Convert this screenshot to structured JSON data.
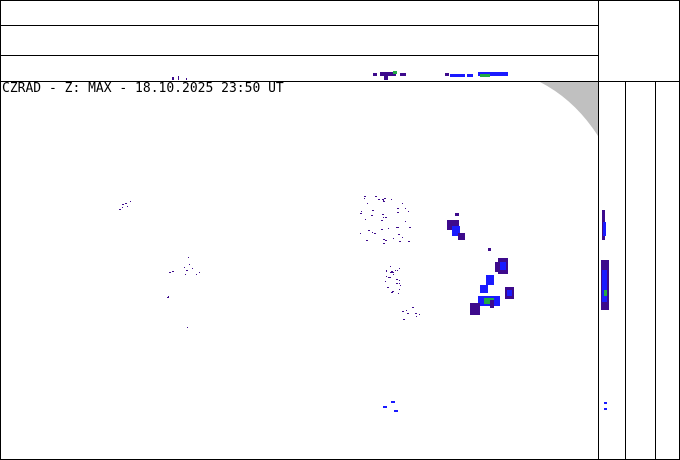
{
  "title": "CZRAD - Z: MAX - 18.10.2025 23:50 UT",
  "colors": {
    "weak": "#3d0a8c",
    "moderate": "#1a1aff",
    "strong": "#22aa44",
    "no_coverage": "#c0c0c0"
  }
}
